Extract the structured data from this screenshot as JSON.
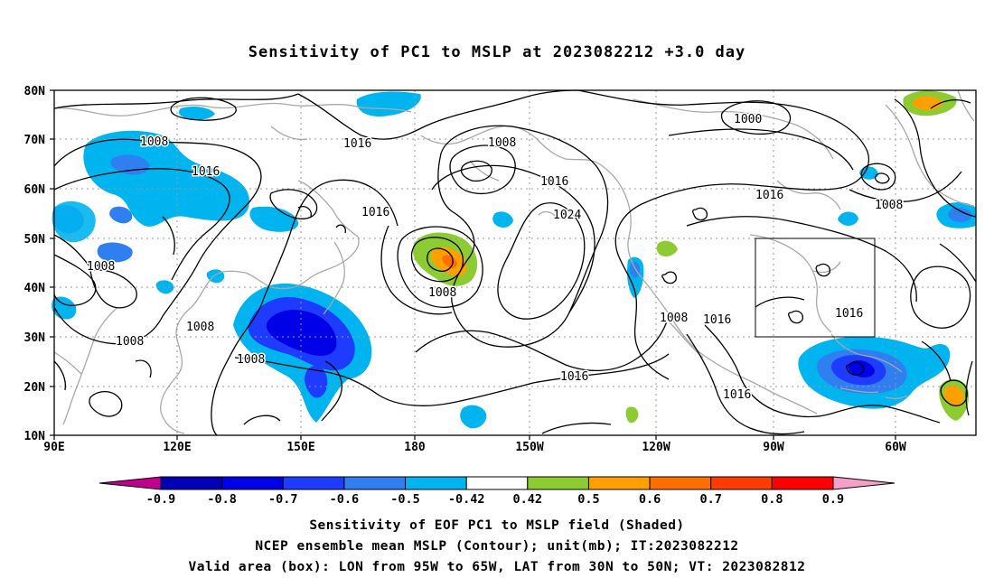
{
  "title": "Sensitivity of PC1 to MSLP at 2023082212 +3.0 day",
  "lat_labels": [
    "80N",
    "70N",
    "60N",
    "50N",
    "40N",
    "30N",
    "20N",
    "10N"
  ],
  "lon_labels": [
    "90E",
    "120E",
    "150E",
    "180",
    "150W",
    "120W",
    "90W",
    "60W"
  ],
  "contour_labels": [
    {
      "text": "1008",
      "key": "a"
    },
    {
      "text": "1016",
      "key": "b"
    },
    {
      "text": "1016",
      "key": "c"
    },
    {
      "text": "1008",
      "key": "d"
    },
    {
      "text": "1016",
      "key": "e"
    },
    {
      "text": "1000",
      "key": "f"
    },
    {
      "text": "1016",
      "key": "g"
    },
    {
      "text": "1008",
      "key": "h"
    },
    {
      "text": "1016",
      "key": "i"
    },
    {
      "text": "1024",
      "key": "j"
    },
    {
      "text": "1008",
      "key": "k"
    },
    {
      "text": "1008",
      "key": "l"
    },
    {
      "text": "1008",
      "key": "m"
    },
    {
      "text": "1008",
      "key": "n"
    },
    {
      "text": "1008",
      "key": "o"
    },
    {
      "text": "1016",
      "key": "p"
    },
    {
      "text": "1016",
      "key": "q"
    },
    {
      "text": "1016",
      "key": "r"
    },
    {
      "text": "1016",
      "key": "s"
    },
    {
      "text": "1008",
      "key": "t"
    }
  ],
  "colorbar": {
    "labels": [
      "-0.9",
      "-0.8",
      "-0.7",
      "-0.6",
      "-0.5",
      "-0.42",
      "0.42",
      "0.5",
      "0.6",
      "0.7",
      "0.8",
      "0.9"
    ],
    "colors": [
      "#c0008c",
      "#0000b4",
      "#0000e6",
      "#1e3cff",
      "#2f7ff0",
      "#00b4f0",
      "#ffffff",
      "#8ccc32",
      "#ffa000",
      "#ff6e00",
      "#ff3c00",
      "#ff0000",
      "#f5a0c8"
    ]
  },
  "captions": {
    "line1": "Sensitivity of EOF PC1 to MSLP field (Shaded)",
    "line2": "NCEP ensemble mean MSLP (Contour); unit(mb); IT:2023082212",
    "line3": "Valid area (box): LON from 95W to 65W, LAT from 30N to 50N; VT: 2023082812"
  },
  "colors": {
    "coast": "#a8a8a8",
    "contour": "#000000",
    "grid": "#999999"
  }
}
